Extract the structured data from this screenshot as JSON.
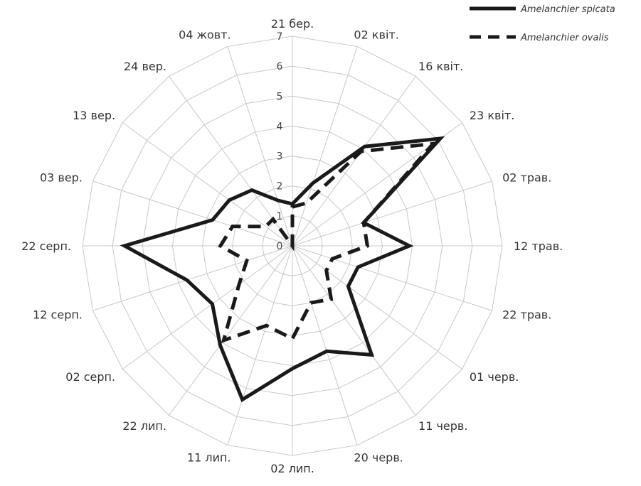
{
  "chart_data": {
    "type": "radar",
    "categories": [
      "21 бер.",
      "02 квіт.",
      "16 квіт.",
      "23 квіт.",
      "02 трав.",
      "12 трав.",
      "22 трав.",
      "01 черв.",
      "11 черв.",
      "20 черв.",
      "02 лип.",
      "11 лип.",
      "22 лип.",
      "02 серп.",
      "12 серп.",
      "22 серп.",
      "03 вер.",
      "13 вер.",
      "24 вер.",
      "04 жовт."
    ],
    "rlim": [
      0,
      7
    ],
    "ticks": [
      "0",
      "1",
      "2",
      "3",
      "4",
      "5",
      "6",
      "7"
    ],
    "grid": true,
    "legend_position": "top-right",
    "series": [
      {
        "name": "Amelanchier spicata",
        "style": "solid",
        "color": "#1a1a1a",
        "values": [
          1.4,
          2.2,
          4.1,
          6.1,
          2.5,
          3.9,
          2.3,
          2.3,
          4.5,
          3.7,
          4.1,
          5.4,
          4.1,
          3.3,
          3.7,
          5.6,
          2.8,
          2.6,
          2.3,
          1.6
        ]
      },
      {
        "name": "Amelanchier ovalis",
        "style": "dashed",
        "color": "#1a1a1a",
        "values": [
          1.3,
          1.5,
          3.9,
          5.8,
          2.5,
          2.5,
          1.4,
          1.4,
          2.2,
          2.0,
          3.1,
          2.8,
          3.9,
          2.2,
          1.6,
          2.4,
          2.1,
          1.1,
          1.1,
          0.0
        ]
      }
    ]
  }
}
